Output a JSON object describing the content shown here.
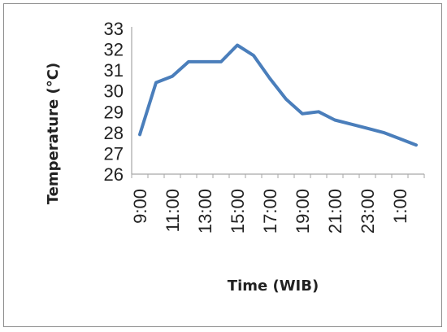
{
  "chart_data": {
    "type": "line",
    "title": "",
    "xlabel": "Time (WIB)",
    "ylabel": "Temperature (°C)",
    "ylim": [
      26,
      33
    ],
    "y_ticks": [
      26,
      27,
      28,
      29,
      30,
      31,
      32,
      33
    ],
    "x_tick_labels": [
      "9:00",
      "11:00",
      "13:00",
      "15:00",
      "17:00",
      "19:00",
      "21:00",
      "23:00",
      "1:00"
    ],
    "grid": false,
    "legend": "none",
    "line_color": "#4a7ebb",
    "series": [
      {
        "x": [
          "9:00",
          "10:00",
          "11:00",
          "12:00",
          "13:00",
          "14:00",
          "15:00",
          "16:00",
          "17:00",
          "18:00",
          "19:00",
          "20:00",
          "21:00",
          "22:00",
          "23:00",
          "0:00",
          "1:00",
          "2:00"
        ],
        "values": [
          27.9,
          30.4,
          30.7,
          31.4,
          31.4,
          31.4,
          32.2,
          31.7,
          30.6,
          29.6,
          28.9,
          29.0,
          28.6,
          28.4,
          28.2,
          28.0,
          27.7,
          27.4
        ]
      }
    ]
  }
}
